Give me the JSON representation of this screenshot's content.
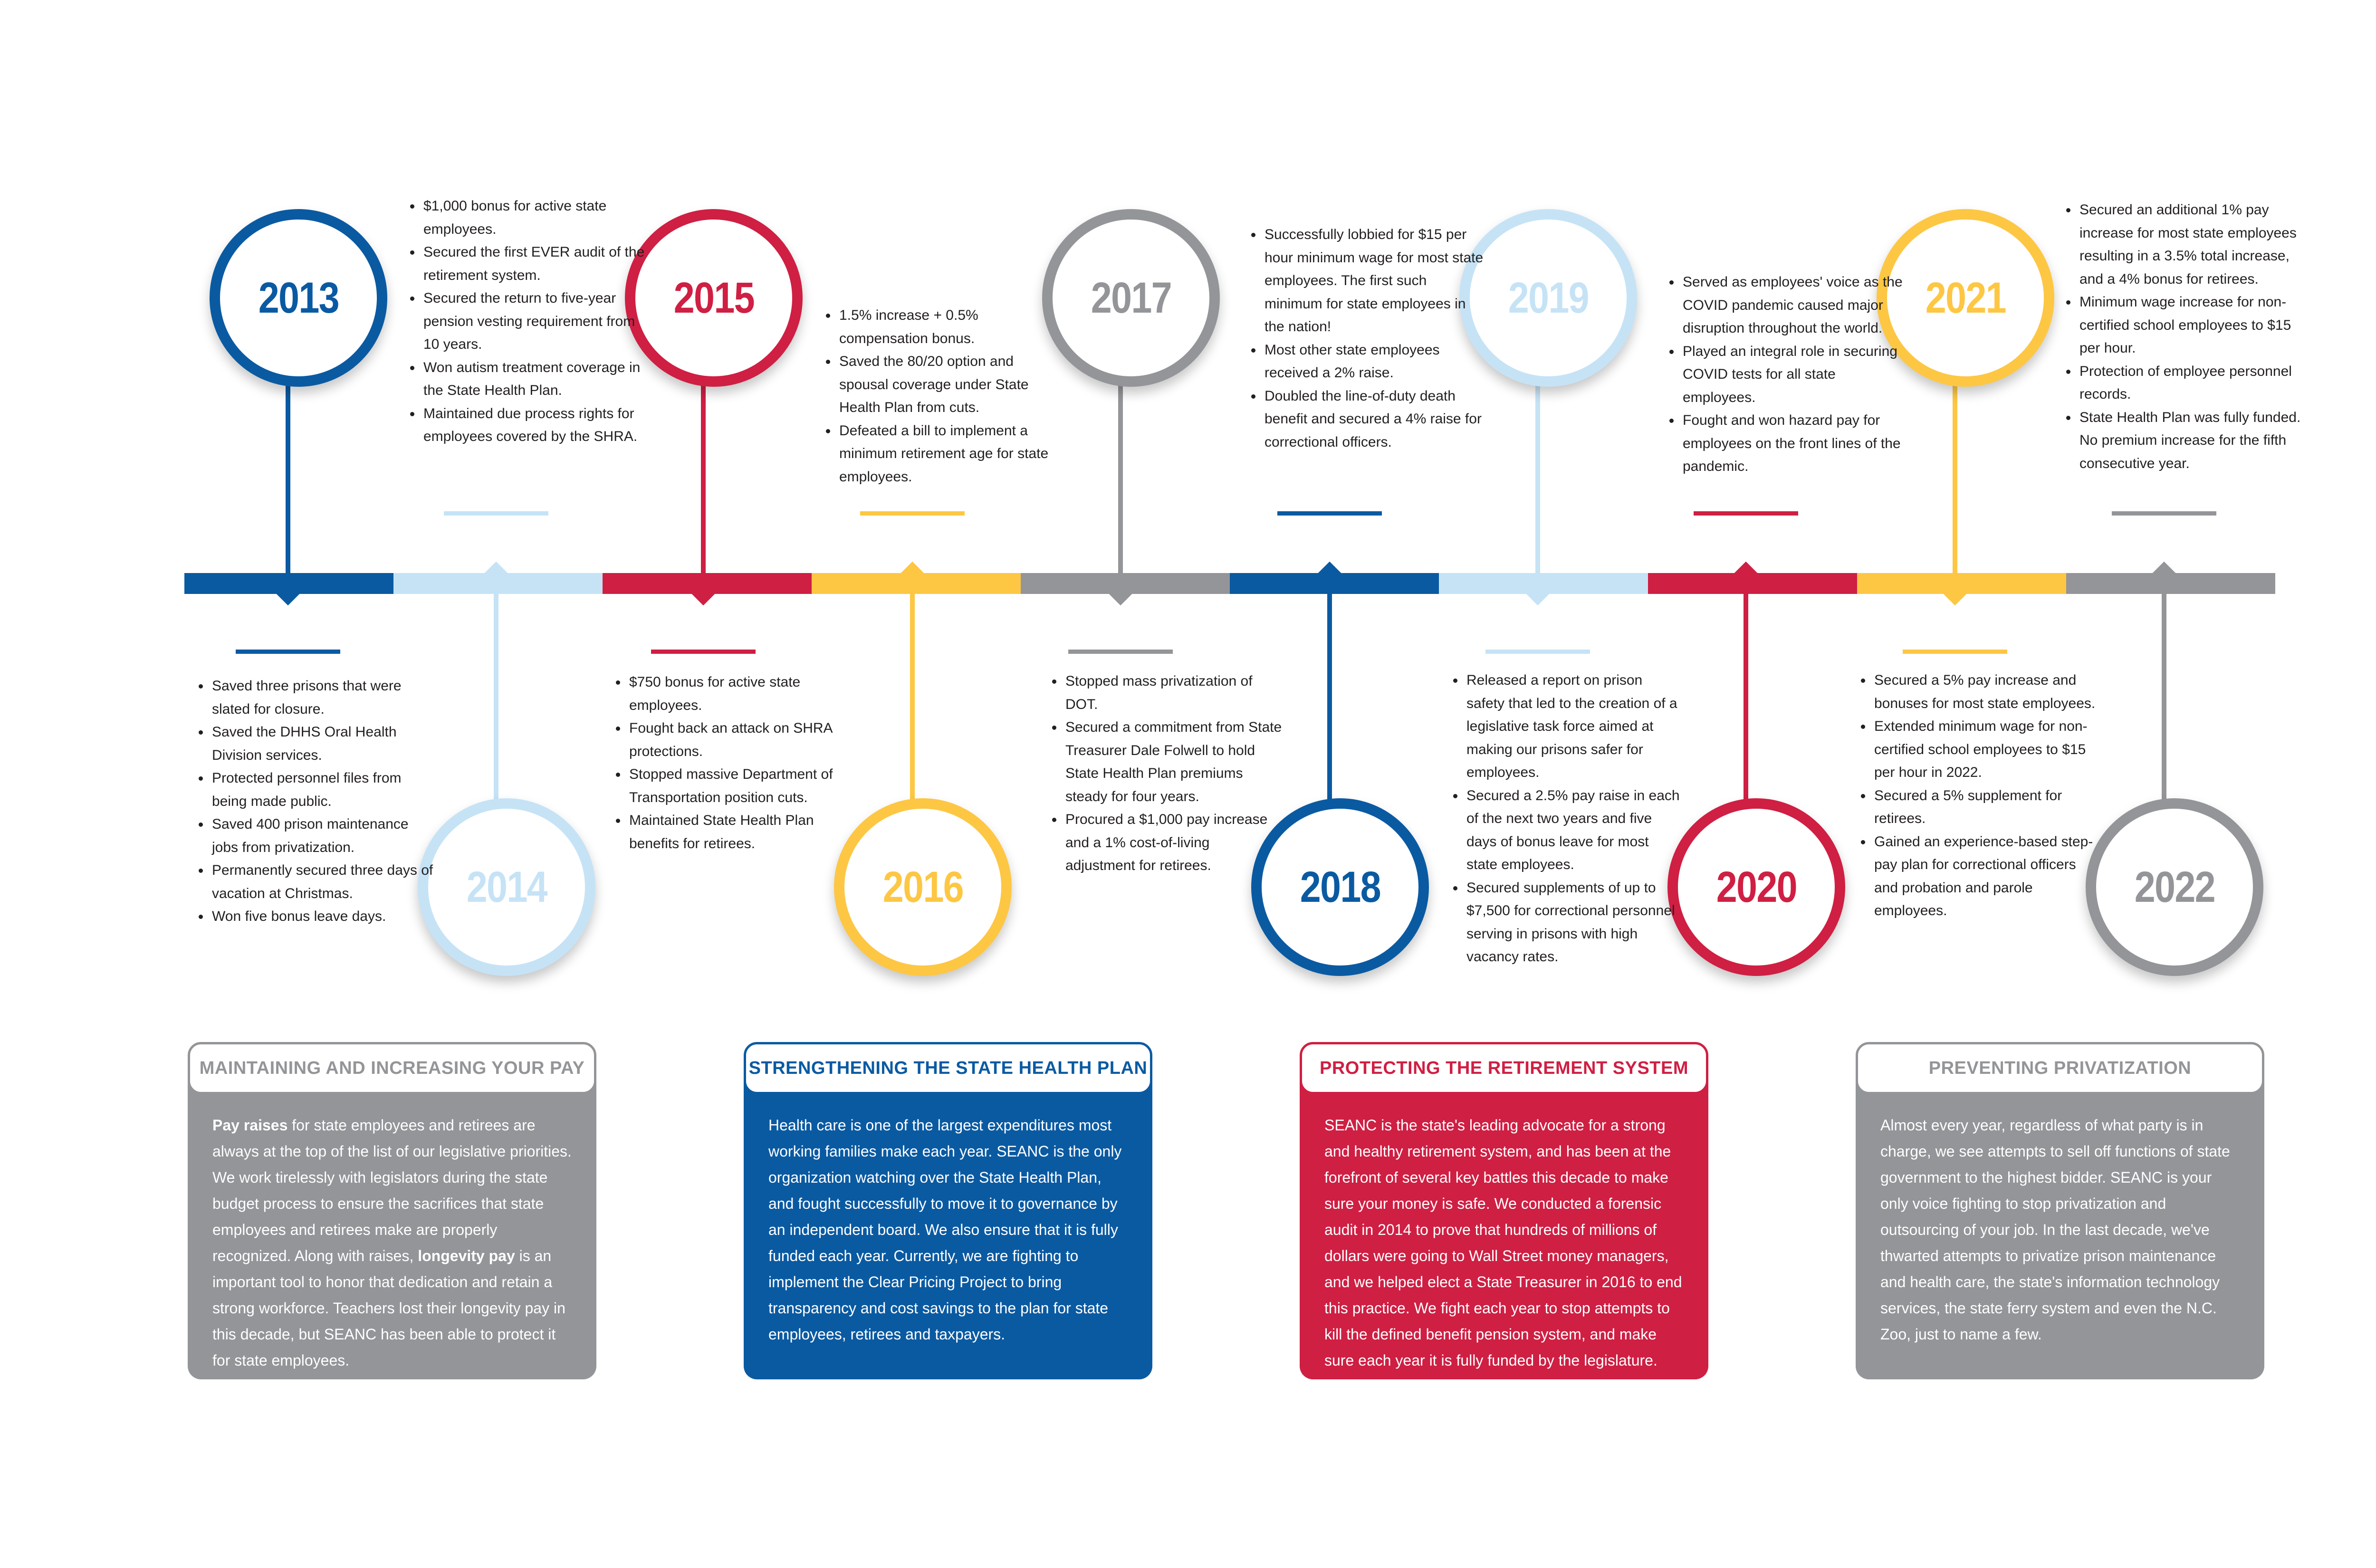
{
  "colors": {
    "blue": "#0a5aa2",
    "light_blue": "#c6e3f6",
    "red": "#cf1f43",
    "yellow": "#fdc744",
    "gray": "#939598"
  },
  "years": [
    {
      "year": "2013",
      "color": "blue",
      "position": "top",
      "notes": [
        "Saved three prisons that were slated for closure.",
        "Saved the DHHS Oral Health Division services.",
        "Protected personnel files from being made public.",
        "Saved 400 prison maintenance jobs from privatization.",
        "Permanently secured three days of vacation at Christmas.",
        "Won five bonus leave days."
      ]
    },
    {
      "year": "2014",
      "color": "light_blue",
      "position": "bottom",
      "notes": [
        "$1,000 bonus for active state employees.",
        "Secured the first EVER audit of the retirement system.",
        "Secured the return to five-year pension vesting requirement from 10 years.",
        "Won autism treatment coverage in the State Health Plan.",
        "Maintained due process rights for employees covered by the SHRA."
      ]
    },
    {
      "year": "2015",
      "color": "red",
      "position": "top",
      "notes": [
        "$750 bonus for active state employees.",
        "Fought back an attack on SHRA protections.",
        "Stopped massive Department of Transportation position cuts.",
        "Maintained State Health Plan benefits for retirees."
      ]
    },
    {
      "year": "2016",
      "color": "yellow",
      "position": "bottom",
      "notes": [
        "1.5% increase + 0.5% compensation bonus.",
        "Saved the 80/20 option and spousal coverage under State Health Plan from cuts.",
        "Defeated a bill to implement a minimum retirement age for state employees."
      ]
    },
    {
      "year": "2017",
      "color": "gray",
      "position": "top",
      "notes": [
        "Stopped mass privatization of DOT.",
        "Secured a commitment from State Treasurer Dale Folwell to hold State Health Plan premiums steady for four years.",
        "Procured a $1,000 pay increase and a 1% cost-of-living adjustment for retirees."
      ]
    },
    {
      "year": "2018",
      "color": "blue",
      "position": "bottom",
      "notes": [
        "Successfully lobbied for $15 per hour minimum wage for most state employees. The first such minimum for state employees in the nation!",
        "Most other state employees received a 2% raise.",
        "Doubled the line-of-duty death benefit and secured a 4% raise for correctional officers."
      ]
    },
    {
      "year": "2019",
      "color": "light_blue",
      "position": "top",
      "notes": [
        "Released a report on prison safety that led to the creation of a legislative task force aimed at making our prisons safer for employees.",
        "Secured a 2.5% pay raise in each of the next two years and five days of bonus leave for most state employees.",
        "Secured supplements of up to $7,500 for correctional personnel serving in prisons with high vacancy rates."
      ]
    },
    {
      "year": "2020",
      "color": "red",
      "position": "bottom",
      "notes": [
        "Served as employees' voice as the COVID pandemic caused major disruption throughout the world.",
        "Played an integral role in securing COVID tests for all state employees.",
        "Fought and won hazard pay for employees on the front lines of the pandemic."
      ]
    },
    {
      "year": "2021",
      "color": "yellow",
      "position": "top",
      "notes": [
        "Secured a 5% pay increase and bonuses for most state employees.",
        "Extended minimum wage for non-certified school employees to $15 per hour in 2022.",
        "Secured a 5% supplement for retirees.",
        "Gained an experience-based step-pay plan for correctional officers and probation and parole employees."
      ]
    },
    {
      "year": "2022",
      "color": "gray",
      "position": "bottom",
      "notes": [
        "Secured an additional 1% pay increase for most state employees resulting in a 3.5% total increase, and a 4% bonus for retirees.",
        "Minimum wage increase for non-certified school employees to $15 per hour.",
        "Protection of employee personnel records.",
        "State Health Plan was fully funded. No premium increase for the fifth consecutive year."
      ]
    }
  ],
  "panels": [
    {
      "title": "MAINTAINING AND INCREASING YOUR PAY",
      "color": "gray",
      "body": [
        {
          "text": "Pay raises",
          "bold": true
        },
        {
          "text": " for state employees and retirees are always at the top of the list of our legislative priorities. We work tirelessly with legislators during the state budget process to ensure the sacrifices that state employees and retirees make are properly recognized. Along with raises, ",
          "bold": false
        },
        {
          "text": "longevity pay",
          "bold": true
        },
        {
          "text": " is an important tool to honor that dedication and retain a strong workforce. Teachers lost their longevity pay in this decade, but SEANC has been able to protect it for state employees.",
          "bold": false
        }
      ]
    },
    {
      "title": "STRENGTHENING THE STATE HEALTH PLAN",
      "color": "blue",
      "body": [
        {
          "text": "Health care is one of the largest expenditures most working families make each year. SEANC is the only organization watching over the State Health Plan, and fought successfully to move it to governance by an independent board. We also ensure that it is fully funded each year. Currently, we are fighting to implement the Clear Pricing Project to bring transparency and cost savings to the plan for state employees, retirees and taxpayers.",
          "bold": false
        }
      ]
    },
    {
      "title": "PROTECTING THE RETIREMENT SYSTEM",
      "color": "red",
      "body": [
        {
          "text": "SEANC is the state's leading advocate for a strong and healthy retirement system, and has been at the forefront of several key battles this decade to make sure your money is safe. We conducted a forensic audit in 2014 to prove that hundreds of millions of dollars were going to Wall Street money managers, and we helped elect a State Treasurer in 2016 to end this practice. We fight each year to stop attempts to kill the defined benefit pension system, and make sure each year it is fully funded by the legislature.",
          "bold": false
        }
      ]
    },
    {
      "title": "PREVENTING PRIVATIZATION",
      "color": "gray",
      "body": [
        {
          "text": "Almost every year, regardless of what party is in charge, we see attempts to sell off functions of state government to the highest bidder. SEANC is your only voice fighting to stop privatization and outsourcing of your job. In the last decade, we've thwarted attempts to privatize prison maintenance and health care, the state's information technology services, the state ferry system and even the N.C. Zoo, just to name a few.",
          "bold": false
        }
      ]
    }
  ]
}
